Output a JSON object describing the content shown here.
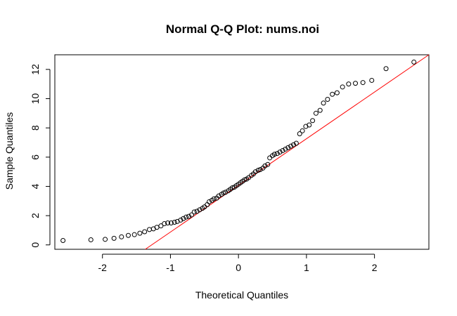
{
  "chart_data": {
    "type": "scatter",
    "title": "Normal Q-Q Plot: nums.noi",
    "xlabel": "Theoretical Quantiles",
    "ylabel": "Sample Quantiles",
    "xlim": [
      -2.7,
      2.8
    ],
    "ylim": [
      -0.3,
      13.0
    ],
    "xticks": [
      -2,
      -1,
      0,
      1,
      2
    ],
    "xtick_labels": [
      "-2",
      "-1",
      "0",
      "1",
      "2"
    ],
    "yticks": [
      0,
      2,
      4,
      6,
      8,
      10,
      12
    ],
    "ytick_labels": [
      "0",
      "2",
      "4",
      "6",
      "8",
      "10",
      "12"
    ],
    "grid": false,
    "colors": {
      "points": "#000000",
      "qq_line": "#ff0000",
      "axes": "#000000"
    },
    "qq_line": {
      "name": "reference line",
      "x": [
        -1.37,
        2.8
      ],
      "y": [
        -0.3,
        13.0
      ]
    },
    "series": [
      {
        "x": [
          -2.58,
          -2.17,
          -1.96,
          -1.83,
          -1.72,
          -1.62,
          -1.53,
          -1.45,
          -1.38,
          -1.31,
          -1.25,
          -1.2,
          -1.14,
          -1.09,
          -1.04,
          -0.99,
          -0.94,
          -0.9,
          -0.85,
          -0.81,
          -0.77,
          -0.73,
          -0.69,
          -0.65,
          -0.61,
          -0.57,
          -0.53,
          -0.5,
          -0.46,
          -0.43,
          -0.39,
          -0.36,
          -0.32,
          -0.29,
          -0.25,
          -0.22,
          -0.19,
          -0.15,
          -0.12,
          -0.09,
          -0.06,
          -0.03,
          0.0,
          0.03,
          0.06,
          0.09,
          0.12,
          0.15,
          0.19,
          0.22,
          0.25,
          0.29,
          0.32,
          0.36,
          0.39,
          0.43,
          0.46,
          0.5,
          0.53,
          0.57,
          0.61,
          0.65,
          0.69,
          0.73,
          0.77,
          0.81,
          0.85,
          0.9,
          0.94,
          0.99,
          1.04,
          1.09,
          1.14,
          1.2,
          1.25,
          1.31,
          1.38,
          1.45,
          1.53,
          1.62,
          1.72,
          1.83,
          1.96,
          2.17,
          2.58
        ],
        "y": [
          0.3,
          0.35,
          0.38,
          0.45,
          0.55,
          0.65,
          0.7,
          0.8,
          0.9,
          1.05,
          1.1,
          1.2,
          1.3,
          1.45,
          1.5,
          1.5,
          1.55,
          1.6,
          1.7,
          1.8,
          1.9,
          1.95,
          2.05,
          2.25,
          2.3,
          2.4,
          2.5,
          2.6,
          2.75,
          2.95,
          3.05,
          3.15,
          3.2,
          3.35,
          3.45,
          3.55,
          3.6,
          3.7,
          3.8,
          3.9,
          3.95,
          4.05,
          4.15,
          4.25,
          4.35,
          4.45,
          4.5,
          4.6,
          4.75,
          4.85,
          5.0,
          5.1,
          5.15,
          5.25,
          5.4,
          5.5,
          5.95,
          6.1,
          6.2,
          6.25,
          6.35,
          6.45,
          6.55,
          6.65,
          6.75,
          6.85,
          6.95,
          7.6,
          7.8,
          8.1,
          8.2,
          8.5,
          9.0,
          9.2,
          9.7,
          9.95,
          10.3,
          10.4,
          10.8,
          11.0,
          11.05,
          11.1,
          11.25,
          12.05,
          12.5
        ]
      }
    ]
  }
}
